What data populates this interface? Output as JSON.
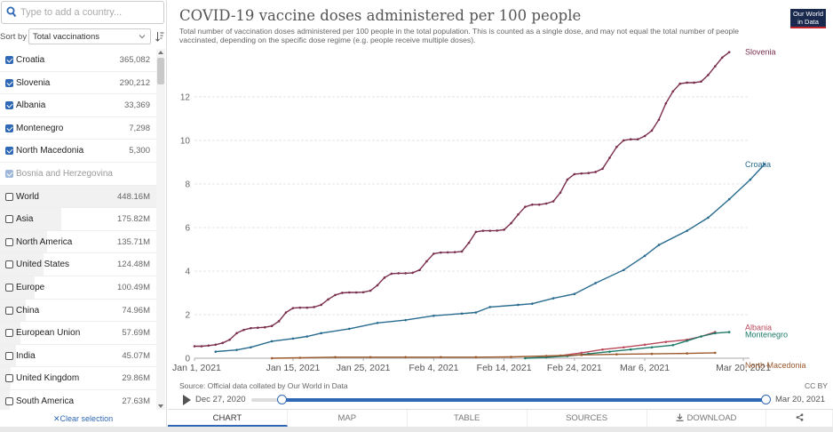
{
  "search": {
    "placeholder": "Type to add a country..."
  },
  "sort": {
    "label": "Sort by",
    "selected": "Total vaccinations"
  },
  "entities": [
    {
      "name": "Croatia",
      "value": "365,082",
      "checked": true,
      "bar": 0
    },
    {
      "name": "Slovenia",
      "value": "290,212",
      "checked": true,
      "bar": 0
    },
    {
      "name": "Albania",
      "value": "33,369",
      "checked": true,
      "bar": 0
    },
    {
      "name": "Montenegro",
      "value": "7,298",
      "checked": true,
      "bar": 0
    },
    {
      "name": "North Macedonia",
      "value": "5,300",
      "checked": true,
      "bar": 0
    },
    {
      "name": "Bosnia and Herzegovina",
      "value": "",
      "checked": true,
      "disabled": true,
      "bar": 0
    },
    {
      "name": "World",
      "value": "448.16M",
      "checked": false,
      "bar": 1.0
    },
    {
      "name": "Asia",
      "value": "175.82M",
      "checked": false,
      "bar": 0.392
    },
    {
      "name": "North America",
      "value": "135.71M",
      "checked": false,
      "bar": 0.303
    },
    {
      "name": "United States",
      "value": "124.48M",
      "checked": false,
      "bar": 0.278
    },
    {
      "name": "Europe",
      "value": "100.49M",
      "checked": false,
      "bar": 0.224
    },
    {
      "name": "China",
      "value": "74.96M",
      "checked": false,
      "bar": 0.167
    },
    {
      "name": "European Union",
      "value": "57.69M",
      "checked": false,
      "bar": 0.129
    },
    {
      "name": "India",
      "value": "45.07M",
      "checked": false,
      "bar": 0.101
    },
    {
      "name": "United Kingdom",
      "value": "29.86M",
      "checked": false,
      "bar": 0.067
    },
    {
      "name": "South America",
      "value": "27.63M",
      "checked": false,
      "bar": 0.062
    }
  ],
  "clear_selection": "Clear selection",
  "header": {
    "title": "COVID-19 vaccine doses administered per 100 people",
    "subtitle": "Total number of vaccination doses administered per 100 people in the total population. This is counted as a single dose, and may not equal the total number of people vaccinated, depending on the specific dose regime (e.g. people receive multiple doses).",
    "logo_line1": "Our World",
    "logo_line2": "in Data"
  },
  "footer": {
    "source": "Source: Official data collated by Our World in Data",
    "license": "CC BY"
  },
  "timeline": {
    "start": "Dec 27, 2020",
    "end": "Mar 20, 2021"
  },
  "tabs": [
    "CHART",
    "MAP",
    "TABLE",
    "SOURCES",
    "DOWNLOAD"
  ],
  "colors": {
    "Slovenia": "#7a2e4d",
    "Croatia": "#286b8f",
    "Albania": "#b8485a",
    "Montenegro": "#1e7a6a",
    "North Macedonia": "#9c5a2e",
    "accent": "#2f68b5"
  },
  "chart_data": {
    "type": "line",
    "title": "COVID-19 vaccine doses administered per 100 people",
    "x_range": [
      0,
      78
    ],
    "ylim": [
      0,
      14.2
    ],
    "yticks": [
      0,
      2,
      4,
      6,
      8,
      10,
      12
    ],
    "xticks": [
      {
        "day": 0,
        "label": "Jan 1, 2021"
      },
      {
        "day": 14,
        "label": "Jan 15, 2021"
      },
      {
        "day": 24,
        "label": "Jan 25, 2021"
      },
      {
        "day": 34,
        "label": "Feb 4, 2021"
      },
      {
        "day": 44,
        "label": "Feb 14, 2021"
      },
      {
        "day": 54,
        "label": "Feb 24, 2021"
      },
      {
        "day": 64,
        "label": "Mar 6, 2021"
      },
      {
        "day": 78,
        "label": "Mar 20, 2021"
      }
    ],
    "series": [
      {
        "name": "Slovenia",
        "points": [
          [
            0,
            0.55
          ],
          [
            1,
            0.55
          ],
          [
            2,
            0.58
          ],
          [
            3,
            0.62
          ],
          [
            4,
            0.7
          ],
          [
            5,
            0.85
          ],
          [
            6,
            1.15
          ],
          [
            7,
            1.3
          ],
          [
            8,
            1.38
          ],
          [
            9,
            1.4
          ],
          [
            10,
            1.42
          ],
          [
            11,
            1.48
          ],
          [
            12,
            1.7
          ],
          [
            13,
            2.1
          ],
          [
            14,
            2.3
          ],
          [
            15,
            2.32
          ],
          [
            16,
            2.32
          ],
          [
            17,
            2.35
          ],
          [
            18,
            2.45
          ],
          [
            19,
            2.7
          ],
          [
            20,
            2.9
          ],
          [
            21,
            3.0
          ],
          [
            22,
            3.02
          ],
          [
            23,
            3.02
          ],
          [
            24,
            3.03
          ],
          [
            25,
            3.1
          ],
          [
            26,
            3.35
          ],
          [
            27,
            3.7
          ],
          [
            28,
            3.88
          ],
          [
            29,
            3.9
          ],
          [
            30,
            3.9
          ],
          [
            31,
            3.92
          ],
          [
            32,
            4.05
          ],
          [
            33,
            4.45
          ],
          [
            34,
            4.8
          ],
          [
            35,
            4.85
          ],
          [
            36,
            4.86
          ],
          [
            37,
            4.87
          ],
          [
            38,
            4.9
          ],
          [
            39,
            5.3
          ],
          [
            40,
            5.8
          ],
          [
            41,
            5.85
          ],
          [
            42,
            5.85
          ],
          [
            43,
            5.86
          ],
          [
            44,
            5.9
          ],
          [
            45,
            6.2
          ],
          [
            46,
            6.6
          ],
          [
            47,
            6.95
          ],
          [
            48,
            7.05
          ],
          [
            49,
            7.05
          ],
          [
            50,
            7.1
          ],
          [
            51,
            7.2
          ],
          [
            52,
            7.6
          ],
          [
            53,
            8.2
          ],
          [
            54,
            8.45
          ],
          [
            55,
            8.48
          ],
          [
            56,
            8.5
          ],
          [
            57,
            8.55
          ],
          [
            58,
            8.7
          ],
          [
            59,
            9.2
          ],
          [
            60,
            9.7
          ],
          [
            61,
            10.0
          ],
          [
            62,
            10.05
          ],
          [
            63,
            10.05
          ],
          [
            64,
            10.2
          ],
          [
            65,
            10.45
          ],
          [
            66,
            10.95
          ],
          [
            67,
            11.7
          ],
          [
            68,
            12.25
          ],
          [
            69,
            12.6
          ],
          [
            70,
            12.65
          ],
          [
            71,
            12.65
          ],
          [
            72,
            12.7
          ],
          [
            73,
            13.0
          ],
          [
            74,
            13.4
          ],
          [
            75,
            13.8
          ],
          [
            76,
            14.05
          ]
        ]
      },
      {
        "name": "Croatia",
        "points": [
          [
            3,
            0.3
          ],
          [
            6,
            0.38
          ],
          [
            8,
            0.5
          ],
          [
            11,
            0.78
          ],
          [
            14,
            0.9
          ],
          [
            16,
            1.0
          ],
          [
            18,
            1.15
          ],
          [
            22,
            1.35
          ],
          [
            26,
            1.62
          ],
          [
            30,
            1.75
          ],
          [
            34,
            1.95
          ],
          [
            38,
            2.05
          ],
          [
            40,
            2.1
          ],
          [
            42,
            2.35
          ],
          [
            46,
            2.45
          ],
          [
            48,
            2.5
          ],
          [
            51,
            2.75
          ],
          [
            54,
            2.95
          ],
          [
            57,
            3.45
          ],
          [
            61,
            4.05
          ],
          [
            64,
            4.7
          ],
          [
            66,
            5.2
          ],
          [
            70,
            5.85
          ],
          [
            73,
            6.45
          ],
          [
            76,
            7.3
          ],
          [
            79,
            8.2
          ],
          [
            81,
            8.9
          ]
        ]
      },
      {
        "name": "Albania",
        "points": [
          [
            50,
            0.05
          ],
          [
            52,
            0.12
          ],
          [
            55,
            0.25
          ],
          [
            58,
            0.4
          ],
          [
            61,
            0.5
          ],
          [
            64,
            0.62
          ],
          [
            67,
            0.75
          ],
          [
            70,
            0.85
          ],
          [
            72,
            1.0
          ],
          [
            74,
            1.2
          ]
        ]
      },
      {
        "name": "Montenegro",
        "points": [
          [
            47,
            0.0
          ],
          [
            50,
            0.04
          ],
          [
            53,
            0.1
          ],
          [
            56,
            0.2
          ],
          [
            59,
            0.3
          ],
          [
            62,
            0.4
          ],
          [
            65,
            0.5
          ],
          [
            68,
            0.6
          ],
          [
            70,
            0.8
          ],
          [
            72,
            1.0
          ],
          [
            74,
            1.15
          ],
          [
            76,
            1.2
          ]
        ]
      },
      {
        "name": "North Macedonia",
        "points": [
          [
            11,
            0.0
          ],
          [
            15,
            0.02
          ],
          [
            20,
            0.05
          ],
          [
            25,
            0.05
          ],
          [
            30,
            0.05
          ],
          [
            35,
            0.05
          ],
          [
            40,
            0.05
          ],
          [
            45,
            0.06
          ],
          [
            50,
            0.1
          ],
          [
            55,
            0.15
          ],
          [
            60,
            0.18
          ],
          [
            65,
            0.2
          ],
          [
            70,
            0.22
          ],
          [
            74,
            0.25
          ]
        ]
      }
    ]
  }
}
